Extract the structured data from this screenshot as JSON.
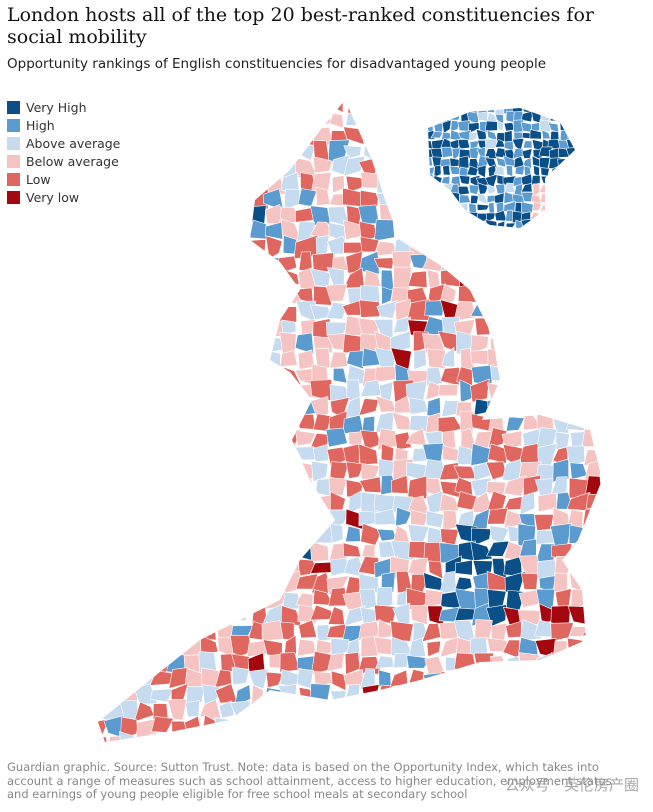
{
  "header": {
    "title": "London hosts all of the top 20 best-ranked constituencies for social mobility",
    "subtitle": "Opportunity rankings of English constituencies for disadvantaged young people"
  },
  "legend": {
    "items": [
      {
        "label": "Very High",
        "color": "#0b4f88"
      },
      {
        "label": "High",
        "color": "#5b9bcf"
      },
      {
        "label": "Above average",
        "color": "#c6dbef"
      },
      {
        "label": "Below average",
        "color": "#f5c4c2"
      },
      {
        "label": "Low",
        "color": "#e06660"
      },
      {
        "label": "Very low",
        "color": "#a3080f"
      }
    ]
  },
  "footer": {
    "source": "Guardian graphic. Source: Sutton Trust. Note: data is based on the Opportunity Index, which takes into account a range of measures such as school attainment, access to higher education, employment status and earnings of young people eligible for free school meals at secondary school"
  },
  "watermark": "公众号 · 英伦房产圈"
}
